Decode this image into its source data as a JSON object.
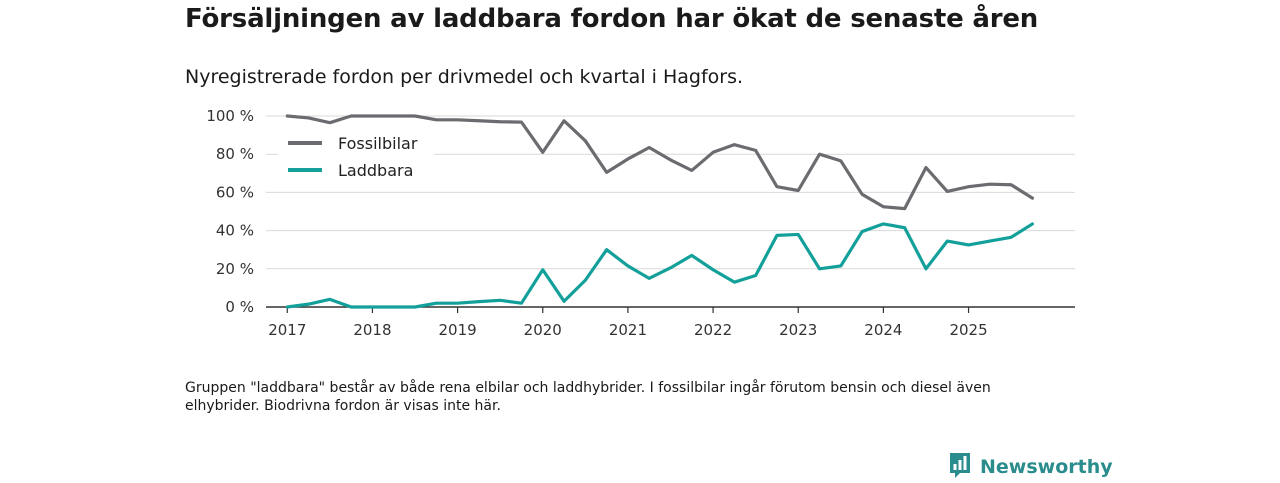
{
  "chart_data": {
    "type": "line",
    "title": "Försäljningen av laddbara fordon har ökat de senaste åren",
    "subtitle": "Nyregistrerade fordon per drivmedel och kvartal i Hagfors.",
    "ylim": [
      0,
      100
    ],
    "y_ticks": [
      0,
      20,
      40,
      60,
      80,
      100
    ],
    "y_tick_labels": [
      "0 %",
      "20 %",
      "40 %",
      "60 %",
      "80 %",
      "100 %"
    ],
    "x_range": [
      2016.75,
      2026.25
    ],
    "x_ticks": [
      2017,
      2018,
      2019,
      2020,
      2021,
      2022,
      2023,
      2024,
      2025
    ],
    "x_tick_labels": [
      "2017",
      "2018",
      "2019",
      "2020",
      "2021",
      "2022",
      "2023",
      "2024",
      "2025"
    ],
    "legend_position": "top-left",
    "grid": true,
    "x": [
      2017.0,
      2017.25,
      2017.5,
      2017.75,
      2018.0,
      2018.25,
      2018.5,
      2018.75,
      2019.0,
      2019.25,
      2019.5,
      2019.75,
      2020.0,
      2020.25,
      2020.5,
      2020.75,
      2021.0,
      2021.25,
      2021.5,
      2021.75,
      2022.0,
      2022.25,
      2022.5,
      2022.75,
      2023.0,
      2023.25,
      2023.5,
      2023.75,
      2024.0,
      2024.25,
      2024.5,
      2024.75,
      2025.0,
      2025.25,
      2025.5,
      2025.75
    ],
    "series": [
      {
        "name": "Fossilbilar",
        "color": "#6b6b70",
        "values": [
          100,
          99,
          96.5,
          100,
          100,
          100,
          100,
          98,
          98,
          97.5,
          97,
          96.8,
          81,
          97.5,
          87,
          70.5,
          77.5,
          83.5,
          77,
          71.5,
          81,
          85,
          82,
          63,
          61,
          80,
          76.5,
          59,
          52.5,
          51.5,
          73,
          60.5,
          63,
          64.3,
          64,
          57
        ]
      },
      {
        "name": "Laddbara",
        "color": "#13a09a",
        "values": [
          0,
          1.5,
          4,
          0,
          0,
          0,
          0,
          2,
          2,
          2.8,
          3.5,
          2,
          19.5,
          3,
          14,
          30,
          21.5,
          15,
          20.5,
          27,
          19.5,
          13,
          16.5,
          37.5,
          38,
          20,
          21.5,
          39.5,
          43.5,
          41.5,
          20,
          34.5,
          32.5,
          34.5,
          36.5,
          43.5
        ]
      }
    ]
  },
  "footnote": "Gruppen \"laddbara\" består av både rena elbilar och laddhybrider. I fossilbilar ingår förutom bensin och diesel även elhybrider. Biodrivna fordon är visas inte här.",
  "brand": {
    "name": "Newsworthy",
    "icon": "bar-chart-logo-icon",
    "color": "#2a8c8c"
  }
}
